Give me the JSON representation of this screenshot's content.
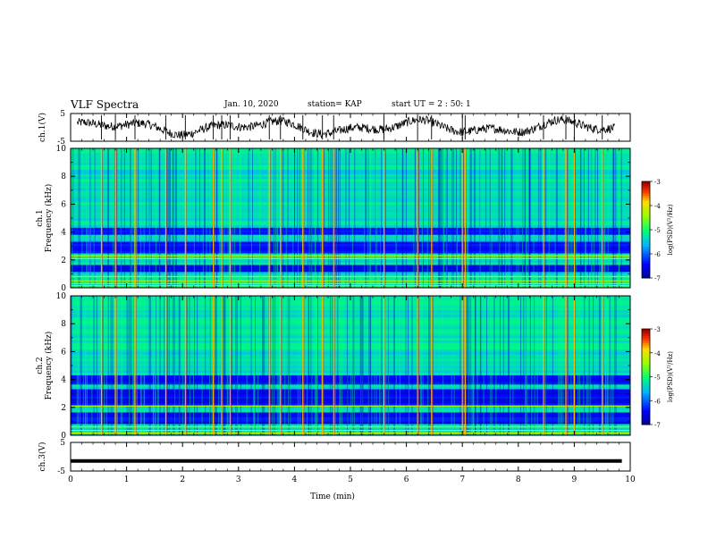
{
  "header": {
    "title": "VLF Spectra",
    "date": "Jan. 10, 2020",
    "station": "station= KAP",
    "start": "start UT =  2 : 50: 1"
  },
  "chart_data": [
    {
      "type": "line",
      "panel": "ch1-waveform",
      "ylabel": "ch.1(V)",
      "ylim": [
        -5,
        5
      ],
      "yticks": [
        "5",
        "-5"
      ],
      "xlim": [
        0,
        10
      ],
      "description_values": "dense noisy waveform, roughly between -4 and +4 V, with frequent vertical spikes"
    },
    {
      "type": "heatmap",
      "panel": "ch1-spectrogram",
      "ylabel": "Frequency (kHz)",
      "channel_label": "ch.1",
      "ylim": [
        0,
        10
      ],
      "yticks": [
        "0",
        "2",
        "4",
        "6",
        "8",
        "10"
      ],
      "xlim": [
        0,
        10
      ],
      "colorbar": {
        "label": "log(PSD)(V²/Hz)",
        "range": [
          -7,
          -3
        ],
        "ticks": [
          "-3",
          "-4",
          "-5",
          "-6",
          "-7"
        ]
      },
      "dark_bands_khz": [
        [
          2.5,
          3.4
        ],
        [
          3.8,
          4.4
        ],
        [
          1.2,
          1.7
        ]
      ],
      "bright_lines_khz": [
        2.1,
        2.3,
        0.8,
        0.5,
        0.3,
        0.15
      ],
      "spike_times_min": [
        0.55,
        0.8,
        1.15,
        1.7,
        2.05,
        2.55,
        2.7,
        2.85,
        3.55,
        3.75,
        4.15,
        4.5,
        4.7,
        5.6,
        6.2,
        6.45,
        7.0,
        7.05,
        8.45,
        8.85,
        9.0,
        9.5
      ]
    },
    {
      "type": "heatmap",
      "panel": "ch2-spectrogram",
      "ylabel": "Frequency (kHz)",
      "channel_label": "ch.2",
      "ylim": [
        0,
        10
      ],
      "yticks": [
        "0",
        "2",
        "4",
        "6",
        "8",
        "10"
      ],
      "xlim": [
        0,
        10
      ],
      "colorbar": {
        "label": "log(PSD)(V²/Hz)",
        "range": [
          -7,
          -3
        ],
        "ticks": [
          "-3",
          "-4",
          "-5",
          "-6",
          "-7"
        ]
      },
      "dark_bands_khz": [
        [
          2.2,
          3.3
        ],
        [
          0.9,
          1.6
        ],
        [
          3.6,
          4.3
        ]
      ],
      "bright_lines_khz": [
        2.1,
        0.6,
        0.35,
        0.15
      ],
      "spike_times_min": [
        0.55,
        0.8,
        1.15,
        1.7,
        2.05,
        2.55,
        2.7,
        2.85,
        3.55,
        3.75,
        4.15,
        4.5,
        4.7,
        5.6,
        6.2,
        6.45,
        7.0,
        7.05,
        8.45,
        8.85,
        9.0,
        9.5
      ]
    },
    {
      "type": "line",
      "panel": "ch3-waveform",
      "ylabel": "ch.3(V)",
      "ylim": [
        -5,
        5
      ],
      "yticks": [
        "5",
        "0",
        "-5"
      ],
      "xlim": [
        0,
        10
      ],
      "xlabel": "Time (min)",
      "xticks": [
        "0",
        "1",
        "2",
        "3",
        "4",
        "5",
        "6",
        "7",
        "8",
        "9",
        "10"
      ],
      "constant_value": -1.5
    }
  ]
}
